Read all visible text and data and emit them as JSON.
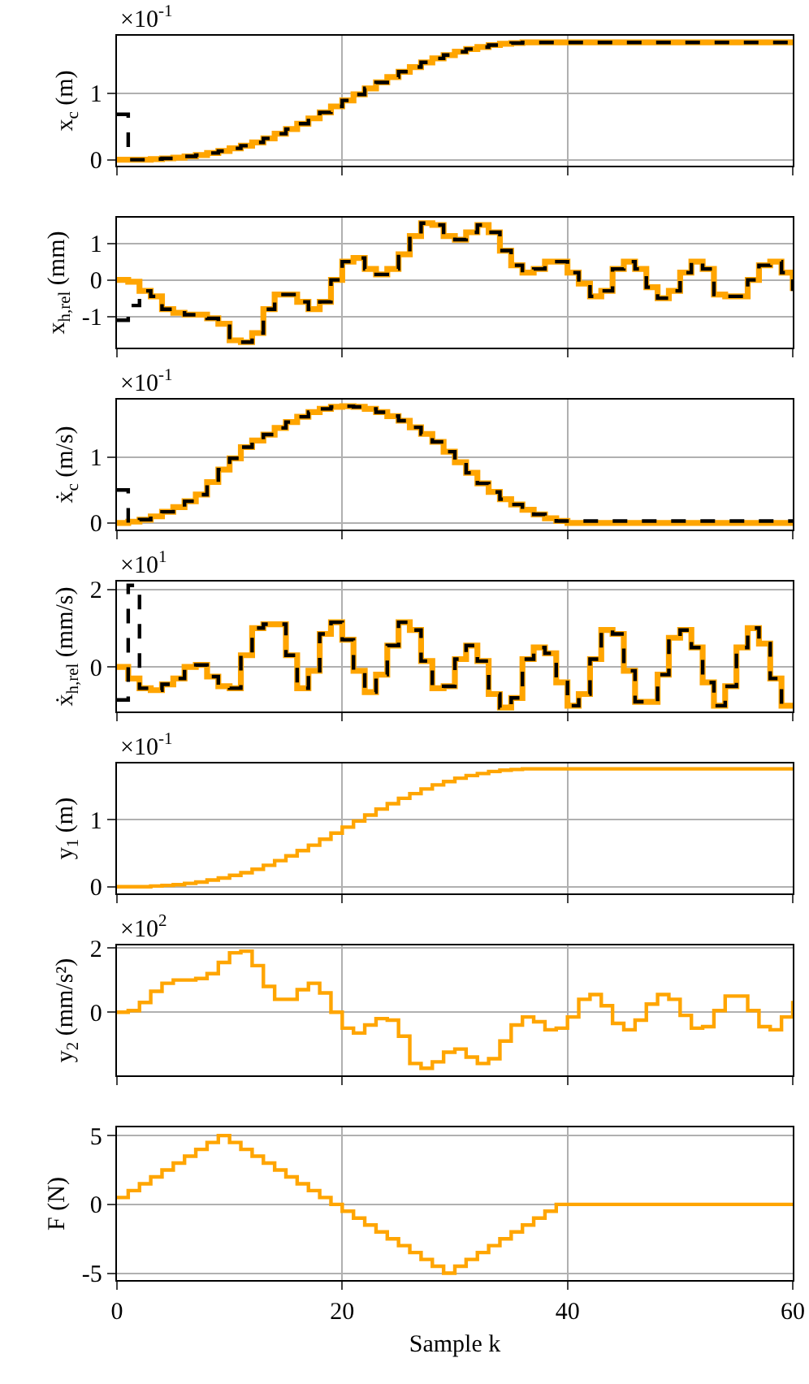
{
  "chart_data": [
    {
      "type": "step",
      "ylabel": "x$_{c}$ (m)",
      "annotations": [
        "×10$^{-1}$"
      ],
      "x": [
        0,
        1,
        2,
        3,
        4,
        5,
        6,
        7,
        8,
        9,
        10,
        11,
        12,
        13,
        14,
        15,
        16,
        17,
        18,
        19,
        20,
        21,
        22,
        23,
        24,
        25,
        26,
        27,
        28,
        29,
        30,
        31,
        32,
        33,
        34,
        35,
        36,
        37,
        38,
        39,
        40,
        41,
        42,
        43,
        44,
        45,
        46,
        47,
        48,
        49,
        50,
        51,
        52,
        53,
        54,
        55,
        56,
        57,
        58,
        59,
        60
      ],
      "xlim": [
        0,
        60
      ],
      "xticks": [
        0,
        20,
        40,
        60
      ],
      "ylim": [
        -0.09,
        1.86
      ],
      "yticks": [
        0,
        1
      ],
      "grid": true,
      "tick_labels": "y",
      "series": [
        {
          "color": "#ffa500",
          "line_style": "solid",
          "values": [
            0,
            0,
            0,
            0.01,
            0.02,
            0.03,
            0.05,
            0.07,
            0.1,
            0.13,
            0.17,
            0.21,
            0.26,
            0.32,
            0.39,
            0.46,
            0.54,
            0.62,
            0.71,
            0.8,
            0.89,
            0.98,
            1.07,
            1.16,
            1.24,
            1.32,
            1.39,
            1.46,
            1.52,
            1.57,
            1.62,
            1.66,
            1.69,
            1.72,
            1.74,
            1.75,
            1.76,
            1.76,
            1.76,
            1.76,
            1.76,
            1.76,
            1.76,
            1.76,
            1.76,
            1.76,
            1.76,
            1.76,
            1.76,
            1.76,
            1.76,
            1.76,
            1.76,
            1.76,
            1.76,
            1.76,
            1.76,
            1.76,
            1.76,
            1.76,
            1.76
          ]
        },
        {
          "color": "#000000",
          "line_style": "dashed",
          "values": [
            0.68,
            0,
            0,
            0.01,
            0.02,
            0.03,
            0.05,
            0.07,
            0.1,
            0.13,
            0.17,
            0.21,
            0.26,
            0.32,
            0.39,
            0.46,
            0.54,
            0.62,
            0.71,
            0.8,
            0.89,
            0.98,
            1.07,
            1.16,
            1.24,
            1.32,
            1.39,
            1.46,
            1.52,
            1.57,
            1.62,
            1.66,
            1.69,
            1.72,
            1.74,
            1.75,
            1.76,
            1.76,
            1.76,
            1.76,
            1.76,
            1.76,
            1.76,
            1.76,
            1.76,
            1.76,
            1.76,
            1.76,
            1.76,
            1.76,
            1.76,
            1.76,
            1.76,
            1.76,
            1.76,
            1.76,
            1.76,
            1.76,
            1.76,
            1.76,
            1.76
          ]
        }
      ]
    },
    {
      "type": "step",
      "ylabel": "x$_{h,rel}$ (mm)",
      "x": [
        0,
        1,
        2,
        3,
        4,
        5,
        6,
        7,
        8,
        9,
        10,
        11,
        12,
        13,
        14,
        15,
        16,
        17,
        18,
        19,
        20,
        21,
        22,
        23,
        24,
        25,
        26,
        27,
        28,
        29,
        30,
        31,
        32,
        33,
        34,
        35,
        36,
        37,
        38,
        39,
        40,
        41,
        42,
        43,
        44,
        45,
        46,
        47,
        48,
        49,
        50,
        51,
        52,
        53,
        54,
        55,
        56,
        57,
        58,
        59,
        60
      ],
      "xlim": [
        0,
        60
      ],
      "xticks": [
        0,
        20,
        40,
        60
      ],
      "ylim": [
        -1.85,
        1.7
      ],
      "yticks": [
        -1,
        0,
        1
      ],
      "grid": true,
      "tick_labels": "y",
      "series": [
        {
          "color": "#ffa500",
          "line_style": "solid",
          "values": [
            0,
            -0.05,
            -0.3,
            -0.45,
            -0.8,
            -0.9,
            -0.95,
            -0.95,
            -1.05,
            -1.2,
            -1.65,
            -1.7,
            -1.45,
            -0.8,
            -0.4,
            -0.4,
            -0.6,
            -0.8,
            -0.6,
            0,
            0.5,
            0.6,
            0.3,
            0.15,
            0.3,
            0.7,
            1.2,
            1.55,
            1.5,
            1.2,
            1.1,
            1.3,
            1.5,
            1.3,
            0.8,
            0.4,
            0.2,
            0.3,
            0.5,
            0.5,
            0.2,
            -0.1,
            -0.45,
            -0.3,
            0.3,
            0.5,
            0.3,
            -0.2,
            -0.5,
            -0.3,
            0.2,
            0.5,
            0.3,
            -0.4,
            -0.45,
            -0.45,
            0,
            0.4,
            0.5,
            0.2,
            -0.3
          ]
        },
        {
          "color": "#000000",
          "line_style": "dashed",
          "values": [
            -1.1,
            -0.7,
            -0.3,
            -0.45,
            -0.8,
            -0.9,
            -0.95,
            -0.95,
            -1.05,
            -1.2,
            -1.65,
            -1.7,
            -1.45,
            -0.8,
            -0.4,
            -0.4,
            -0.6,
            -0.8,
            -0.6,
            0,
            0.5,
            0.6,
            0.3,
            0.15,
            0.3,
            0.7,
            1.2,
            1.55,
            1.5,
            1.2,
            1.1,
            1.3,
            1.5,
            1.3,
            0.8,
            0.4,
            0.2,
            0.3,
            0.5,
            0.5,
            0.2,
            -0.1,
            -0.45,
            -0.3,
            0.3,
            0.5,
            0.3,
            -0.2,
            -0.5,
            -0.3,
            0.2,
            0.5,
            0.3,
            -0.4,
            -0.45,
            -0.45,
            0,
            0.4,
            0.5,
            0.2,
            -0.3
          ]
        }
      ]
    },
    {
      "type": "step",
      "ylabel": "ẋ$_{c}$ (m/s)",
      "annotations": [
        "×10$^{-1}$"
      ],
      "x": [
        0,
        1,
        2,
        3,
        4,
        5,
        6,
        7,
        8,
        9,
        10,
        11,
        12,
        13,
        14,
        15,
        16,
        17,
        18,
        19,
        20,
        21,
        22,
        23,
        24,
        25,
        26,
        27,
        28,
        29,
        30,
        31,
        32,
        33,
        34,
        35,
        36,
        37,
        38,
        39,
        40,
        41,
        42,
        43,
        44,
        45,
        46,
        47,
        48,
        49,
        50,
        51,
        52,
        53,
        54,
        55,
        56,
        57,
        58,
        59,
        60
      ],
      "xlim": [
        0,
        60
      ],
      "xticks": [
        0,
        20,
        40,
        60
      ],
      "ylim": [
        -0.1,
        1.87
      ],
      "yticks": [
        0,
        1
      ],
      "grid": true,
      "tick_labels": "y",
      "series": [
        {
          "color": "#ffa500",
          "line_style": "solid",
          "values": [
            0,
            0.02,
            0.05,
            0.1,
            0.17,
            0.24,
            0.33,
            0.43,
            0.62,
            0.81,
            0.98,
            1.15,
            1.25,
            1.34,
            1.44,
            1.53,
            1.61,
            1.68,
            1.73,
            1.76,
            1.77,
            1.76,
            1.73,
            1.68,
            1.62,
            1.55,
            1.45,
            1.35,
            1.23,
            1.08,
            0.92,
            0.76,
            0.6,
            0.47,
            0.36,
            0.28,
            0.2,
            0.13,
            0.07,
            0.03,
            0,
            0,
            0,
            0,
            0,
            0,
            0,
            0,
            0,
            0,
            0,
            0,
            0,
            0,
            0,
            0,
            0,
            0,
            0,
            0,
            0
          ]
        },
        {
          "color": "#000000",
          "line_style": "dashed",
          "values": [
            0.5,
            0,
            0.05,
            0.1,
            0.17,
            0.24,
            0.33,
            0.43,
            0.62,
            0.81,
            0.98,
            1.15,
            1.25,
            1.34,
            1.44,
            1.53,
            1.61,
            1.68,
            1.73,
            1.76,
            1.77,
            1.76,
            1.73,
            1.68,
            1.62,
            1.55,
            1.45,
            1.35,
            1.23,
            1.08,
            0.92,
            0.76,
            0.6,
            0.47,
            0.36,
            0.28,
            0.2,
            0.13,
            0.07,
            0.03,
            0.03,
            0.03,
            0.03,
            0.03,
            0.03,
            0.03,
            0.03,
            0.03,
            0.03,
            0.03,
            0.03,
            0.03,
            0.03,
            0.03,
            0.03,
            0.03,
            0.03,
            0.03,
            0.03,
            0.03,
            0.03
          ]
        }
      ]
    },
    {
      "type": "step",
      "ylabel": "ẋ$_{h,rel}$ (mm/s)",
      "annotations": [
        "×10$^{1}$"
      ],
      "x": [
        0,
        1,
        2,
        3,
        4,
        5,
        6,
        7,
        8,
        9,
        10,
        11,
        12,
        13,
        14,
        15,
        16,
        17,
        18,
        19,
        20,
        21,
        22,
        23,
        24,
        25,
        26,
        27,
        28,
        29,
        30,
        31,
        32,
        33,
        34,
        35,
        36,
        37,
        38,
        39,
        40,
        41,
        42,
        43,
        44,
        45,
        46,
        47,
        48,
        49,
        50,
        51,
        52,
        53,
        54,
        55,
        56,
        57,
        58,
        59,
        60
      ],
      "xlim": [
        0,
        60
      ],
      "xticks": [
        0,
        20,
        40,
        60
      ],
      "ylim": [
        -1.15,
        2.2
      ],
      "yticks": [
        0,
        2
      ],
      "grid": true,
      "tick_labels": "y",
      "series": [
        {
          "color": "#ffa500",
          "line_style": "solid",
          "values": [
            0,
            -0.3,
            -0.55,
            -0.6,
            -0.45,
            -0.3,
            0,
            0.05,
            -0.25,
            -0.5,
            -0.55,
            0.3,
            1.0,
            1.1,
            1.1,
            0.3,
            -0.55,
            -0.1,
            0.85,
            1.15,
            0.7,
            -0.1,
            -0.65,
            -0.2,
            0.55,
            1.15,
            0.95,
            0.15,
            -0.55,
            -0.5,
            0.2,
            0.55,
            0.15,
            -0.7,
            -1.05,
            -0.8,
            0.2,
            0.5,
            0.35,
            -0.4,
            -1.0,
            -0.7,
            0.2,
            0.95,
            0.85,
            -0.1,
            -0.9,
            -0.9,
            -0.2,
            0.75,
            0.95,
            0.5,
            -0.4,
            -1.0,
            -0.5,
            0.5,
            1.0,
            0.6,
            -0.3,
            -1.0,
            -1.0
          ]
        },
        {
          "color": "#000000",
          "line_style": "dashed",
          "values": [
            -0.85,
            2.1,
            -0.55,
            -0.6,
            -0.45,
            -0.3,
            0,
            0.05,
            -0.25,
            -0.5,
            -0.55,
            0.3,
            1.0,
            1.1,
            1.1,
            0.3,
            -0.55,
            -0.1,
            0.85,
            1.15,
            0.7,
            -0.1,
            -0.65,
            -0.2,
            0.55,
            1.15,
            0.95,
            0.15,
            -0.55,
            -0.5,
            0.2,
            0.55,
            0.15,
            -0.7,
            -1.05,
            -0.8,
            0.2,
            0.5,
            0.35,
            -0.4,
            -1.0,
            -0.7,
            0.2,
            0.95,
            0.85,
            -0.1,
            -0.9,
            -0.9,
            -0.2,
            0.75,
            0.95,
            0.5,
            -0.4,
            -1.0,
            -0.5,
            0.5,
            1.0,
            0.6,
            -0.3,
            -1.0,
            -1.0
          ]
        }
      ]
    },
    {
      "type": "step",
      "ylabel": "y$_{1}$ (m)",
      "annotations": [
        "×10$^{-1}$"
      ],
      "x": [
        0,
        1,
        2,
        3,
        4,
        5,
        6,
        7,
        8,
        9,
        10,
        11,
        12,
        13,
        14,
        15,
        16,
        17,
        18,
        19,
        20,
        21,
        22,
        23,
        24,
        25,
        26,
        27,
        28,
        29,
        30,
        31,
        32,
        33,
        34,
        35,
        36,
        37,
        38,
        39,
        40,
        41,
        42,
        43,
        44,
        45,
        46,
        47,
        48,
        49,
        50,
        51,
        52,
        53,
        54,
        55,
        56,
        57,
        58,
        59,
        60
      ],
      "xlim": [
        0,
        60
      ],
      "xticks": [
        0,
        20,
        40,
        60
      ],
      "ylim": [
        -0.1,
        1.84
      ],
      "yticks": [
        0,
        1
      ],
      "grid": true,
      "tick_labels": "y",
      "series": [
        {
          "color": "#ffa500",
          "line_style": "solid",
          "values": [
            0,
            0,
            0,
            0.01,
            0.02,
            0.03,
            0.05,
            0.07,
            0.1,
            0.13,
            0.17,
            0.21,
            0.26,
            0.32,
            0.39,
            0.46,
            0.54,
            0.62,
            0.71,
            0.8,
            0.89,
            0.98,
            1.07,
            1.16,
            1.24,
            1.32,
            1.39,
            1.46,
            1.52,
            1.57,
            1.62,
            1.66,
            1.69,
            1.72,
            1.74,
            1.75,
            1.76,
            1.76,
            1.76,
            1.76,
            1.76,
            1.76,
            1.76,
            1.76,
            1.76,
            1.76,
            1.76,
            1.76,
            1.76,
            1.76,
            1.76,
            1.76,
            1.76,
            1.76,
            1.76,
            1.76,
            1.76,
            1.76,
            1.76,
            1.76,
            1.76
          ]
        }
      ]
    },
    {
      "type": "step",
      "ylabel": "y$_{2}$ (mm/s²)",
      "annotations": [
        "×10$^{2}$"
      ],
      "x": [
        0,
        1,
        2,
        3,
        4,
        5,
        6,
        7,
        8,
        9,
        10,
        11,
        12,
        13,
        14,
        15,
        16,
        17,
        18,
        19,
        20,
        21,
        22,
        23,
        24,
        25,
        26,
        27,
        28,
        29,
        30,
        31,
        32,
        33,
        34,
        35,
        36,
        37,
        38,
        39,
        40,
        41,
        42,
        43,
        44,
        45,
        46,
        47,
        48,
        49,
        50,
        51,
        52,
        53,
        54,
        55,
        56,
        57,
        58,
        59,
        60
      ],
      "xlim": [
        0,
        60
      ],
      "xticks": [
        0,
        20,
        40,
        60
      ],
      "ylim": [
        -1.97,
        2.08
      ],
      "yticks": [
        0,
        2
      ],
      "grid": true,
      "tick_labels": "y",
      "series": [
        {
          "color": "#ffa500",
          "line_style": "solid",
          "values": [
            0,
            0.05,
            0.3,
            0.65,
            0.9,
            1.0,
            1.0,
            1.05,
            1.2,
            1.55,
            1.85,
            1.9,
            1.45,
            0.8,
            0.4,
            0.4,
            0.7,
            0.9,
            0.6,
            0,
            -0.5,
            -0.65,
            -0.4,
            -0.2,
            -0.25,
            -0.75,
            -1.6,
            -1.75,
            -1.55,
            -1.25,
            -1.15,
            -1.4,
            -1.6,
            -1.45,
            -0.9,
            -0.4,
            -0.15,
            -0.3,
            -0.55,
            -0.5,
            -0.15,
            0.4,
            0.55,
            0.2,
            -0.35,
            -0.55,
            -0.25,
            0.25,
            0.55,
            0.4,
            -0.1,
            -0.5,
            -0.45,
            0.05,
            0.5,
            0.5,
            0.05,
            -0.45,
            -0.55,
            -0.15,
            0.35
          ]
        }
      ]
    },
    {
      "type": "step",
      "ylabel": "F (N)",
      "xlabel": "Sample k",
      "x": [
        0,
        1,
        2,
        3,
        4,
        5,
        6,
        7,
        8,
        9,
        10,
        11,
        12,
        13,
        14,
        15,
        16,
        17,
        18,
        19,
        20,
        21,
        22,
        23,
        24,
        25,
        26,
        27,
        28,
        29,
        30,
        31,
        32,
        33,
        34,
        35,
        36,
        37,
        38,
        39,
        40,
        41,
        42,
        43,
        44,
        45,
        46,
        47,
        48,
        49,
        50,
        51,
        52,
        53,
        54,
        55,
        56,
        57,
        58,
        59,
        60
      ],
      "xlim": [
        0,
        60
      ],
      "xticks": [
        0,
        20,
        40,
        60
      ],
      "ylim": [
        -5.5,
        5.6
      ],
      "yticks": [
        -5,
        0,
        5
      ],
      "grid": true,
      "series": [
        {
          "color": "#ffa500",
          "line_style": "solid",
          "values": [
            0.5,
            1,
            1.5,
            2,
            2.5,
            3,
            3.5,
            4,
            4.5,
            5,
            4.5,
            4,
            3.5,
            3,
            2.5,
            2,
            1.5,
            1,
            0.5,
            0,
            -0.5,
            -1,
            -1.5,
            -2,
            -2.5,
            -3,
            -3.5,
            -4,
            -4.5,
            -5,
            -4.5,
            -4,
            -3.5,
            -3,
            -2.5,
            -2,
            -1.5,
            -1,
            -0.5,
            0,
            0,
            0,
            0,
            0,
            0,
            0,
            0,
            0,
            0,
            0,
            0,
            0,
            0,
            0,
            0,
            0,
            0,
            0,
            0,
            0,
            0
          ]
        }
      ]
    }
  ]
}
